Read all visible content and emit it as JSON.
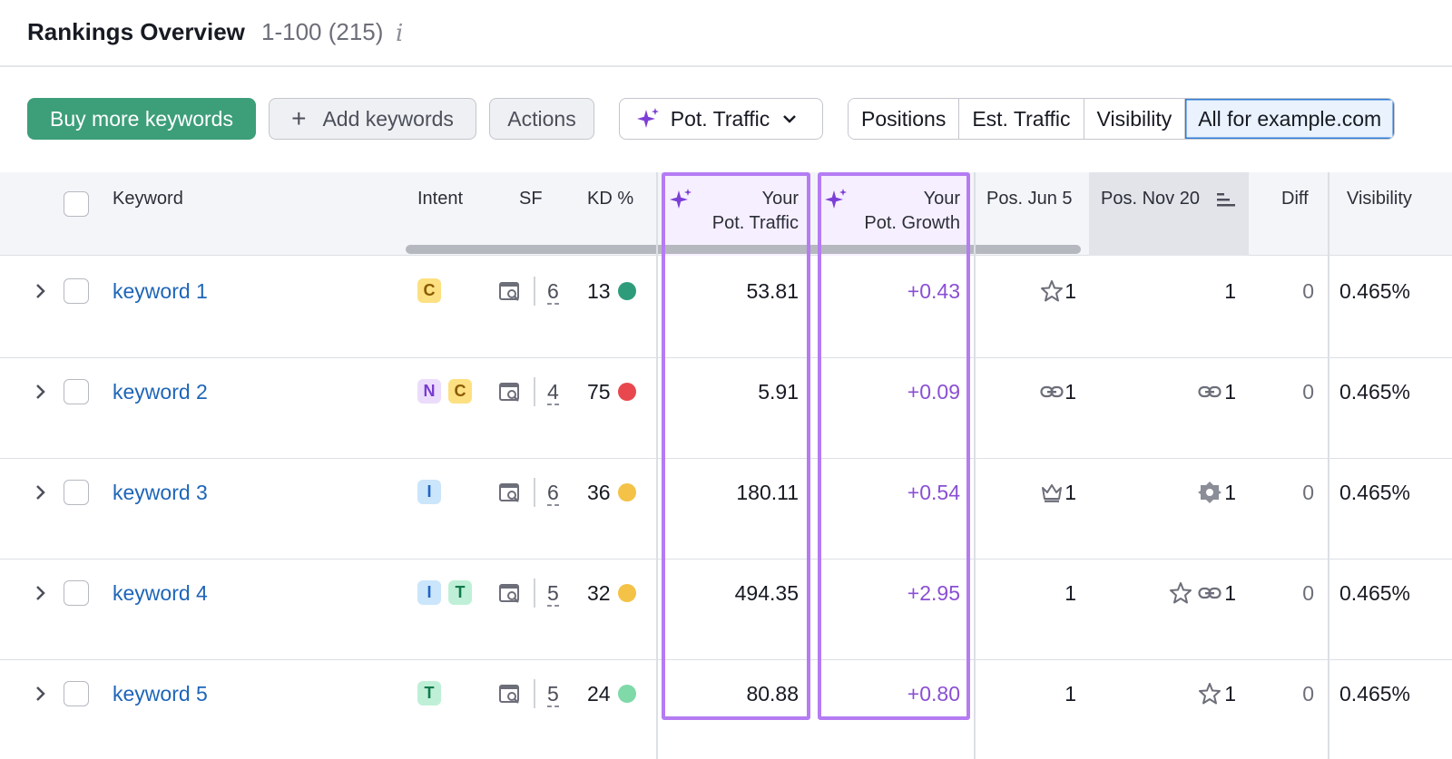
{
  "header": {
    "title": "Rankings Overview",
    "count": "1-100 (215)",
    "info_icon": "i"
  },
  "toolbar": {
    "buy_label": "Buy more keywords",
    "add_label": "Add keywords",
    "add_icon": "+",
    "actions_label": "Actions",
    "pot_traffic_label": "Pot. Traffic",
    "segments": [
      "Positions",
      "Est. Traffic",
      "Visibility",
      "All for example.com"
    ],
    "active_segment": "All for example.com"
  },
  "columns": {
    "keyword": "Keyword",
    "intent": "Intent",
    "sf": "SF",
    "kd": "KD %",
    "pot_traffic_1": "Your",
    "pot_traffic_2": "Pot. Traffic",
    "pot_growth_1": "Your",
    "pot_growth_2": "Pot. Growth",
    "pos_jun": "Pos. Jun 5",
    "pos_nov": "Pos. Nov 20",
    "diff": "Diff",
    "visibility": "Visibility"
  },
  "colors": {
    "accent_purple": "#b57cf2",
    "green_button": "#3d9e7a",
    "link_blue": "#1e65b8"
  },
  "rows": [
    {
      "keyword": "keyword 1",
      "intents": [
        "C"
      ],
      "sf": "6",
      "kd": "13",
      "kd_color": "#2e9c7a",
      "pot_traffic": "53.81",
      "pot_growth": "+0.43",
      "pos_jun": "1",
      "pos_jun_icons": [
        "star-icon"
      ],
      "pos_nov": "1",
      "pos_nov_icons": [],
      "diff": "0",
      "visibility": "0.465%"
    },
    {
      "keyword": "keyword 2",
      "intents": [
        "N",
        "C"
      ],
      "sf": "4",
      "kd": "75",
      "kd_color": "#e8484d",
      "pot_traffic": "5.91",
      "pot_growth": "+0.09",
      "pos_jun": "1",
      "pos_jun_icons": [
        "link-icon"
      ],
      "pos_nov": "1",
      "pos_nov_icons": [
        "link-icon"
      ],
      "diff": "0",
      "visibility": "0.465%"
    },
    {
      "keyword": "keyword 3",
      "intents": [
        "I"
      ],
      "sf": "6",
      "kd": "36",
      "kd_color": "#f3c246",
      "pot_traffic": "180.11",
      "pot_growth": "+0.54",
      "pos_jun": "1",
      "pos_jun_icons": [
        "crown-icon"
      ],
      "pos_nov": "1",
      "pos_nov_icons": [
        "badge-icon"
      ],
      "diff": "0",
      "visibility": "0.465%"
    },
    {
      "keyword": "keyword 4",
      "intents": [
        "I",
        "T"
      ],
      "sf": "5",
      "kd": "32",
      "kd_color": "#f3c246",
      "pot_traffic": "494.35",
      "pot_growth": "+2.95",
      "pos_jun": "1",
      "pos_jun_icons": [],
      "pos_nov": "1",
      "pos_nov_icons": [
        "star-icon",
        "link-icon"
      ],
      "diff": "0",
      "visibility": "0.465%"
    },
    {
      "keyword": "keyword 5",
      "intents": [
        "T"
      ],
      "sf": "5",
      "kd": "24",
      "kd_color": "#7fd9a8",
      "pot_traffic": "80.88",
      "pot_growth": "+0.80",
      "pos_jun": "1",
      "pos_jun_icons": [],
      "pos_nov": "1",
      "pos_nov_icons": [
        "star-icon"
      ],
      "diff": "0",
      "visibility": "0.465%"
    }
  ]
}
